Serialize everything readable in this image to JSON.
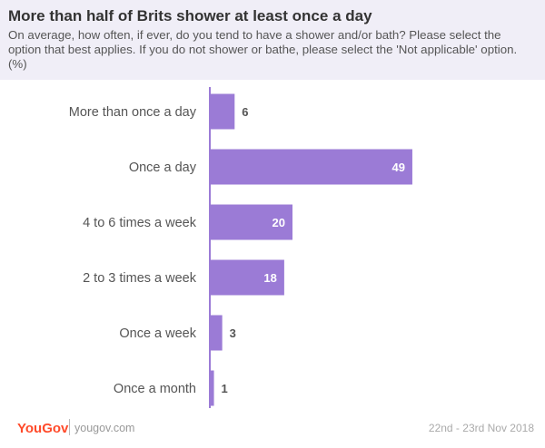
{
  "title": "More than half of Brits shower at least once a day",
  "subtitle": "On average, how often, if ever, do you tend to have a shower and/or bath? Please select the option that best applies. If you do not shower or bathe, please select the 'Not applicable' option. (%)",
  "footer": {
    "brand": "YouGov",
    "site": "yougov.com",
    "date": "22nd - 23rd Nov 2018"
  },
  "colors": {
    "bar": "#9b7bd6",
    "axis": "#9b7bd6",
    "label": "#555555",
    "brand": "#ff4a2a",
    "header_bg": "#f0eef7"
  },
  "chart_data": {
    "type": "bar",
    "orientation": "horizontal",
    "categories": [
      "More than once a day",
      "Once a day",
      "4 to 6 times a week",
      "2 to 3 times a week",
      "Once a week",
      "Once a month"
    ],
    "values": [
      6,
      49,
      20,
      18,
      3,
      1
    ],
    "unit": "%",
    "xlim": [
      0,
      60
    ],
    "grid": false,
    "legend": "none"
  }
}
